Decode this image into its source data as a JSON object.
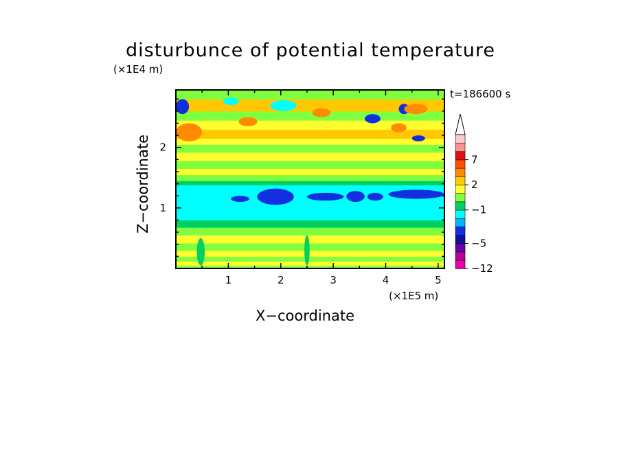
{
  "chart_data": {
    "type": "heatmap",
    "title": "disturbunce of potential temperature",
    "xlabel": "X−coordinate",
    "ylabel": "Z−coordinate",
    "x_unit": "(×1E5 m)",
    "y_unit": "(×1E4 m)",
    "time_label": "t=186600 s",
    "xlim": [
      0,
      5.12
    ],
    "ylim": [
      0,
      2.95
    ],
    "x_ticks": [
      1,
      2,
      3,
      4,
      5
    ],
    "y_ticks": [
      1,
      2
    ],
    "colorbar": {
      "levels": [
        -12,
        -9,
        -7,
        -5,
        -4,
        -3,
        -2,
        -1,
        0,
        1,
        2,
        3,
        5,
        7,
        9,
        12
      ],
      "colors": [
        "#ee00aa",
        "#b4009c",
        "#6a00a8",
        "#1010a0",
        "#1030e0",
        "#00b4ff",
        "#00ffff",
        "#00d060",
        "#80ff40",
        "#ffff30",
        "#ffc800",
        "#ff8c00",
        "#ff5000",
        "#e01010",
        "#ff9090",
        "#ffc8c8"
      ],
      "tick_labels": [
        "-12",
        "-5",
        "-1",
        "2",
        "7"
      ],
      "tick_values": [
        -12,
        -5,
        -1,
        2,
        7
      ],
      "extend": "max"
    },
    "bands": [
      {
        "z": [
          0.0,
          0.05
        ],
        "value": 0.5
      },
      {
        "z": [
          0.05,
          0.12
        ],
        "value": 1.5
      },
      {
        "z": [
          0.12,
          0.2
        ],
        "value": 0.5
      },
      {
        "z": [
          0.2,
          0.3
        ],
        "value": 1.5
      },
      {
        "z": [
          0.3,
          0.42
        ],
        "value": 0.5
      },
      {
        "z": [
          0.42,
          0.55
        ],
        "value": 1.5
      },
      {
        "z": [
          0.55,
          0.68
        ],
        "value": 0.5
      },
      {
        "z": [
          0.68,
          0.8
        ],
        "value": -0.5
      },
      {
        "z": [
          0.8,
          0.88
        ],
        "value": -1.5
      },
      {
        "z": [
          0.88,
          1.1
        ],
        "value": -1.5
      },
      {
        "z": [
          1.1,
          1.38
        ],
        "value": -1.5
      },
      {
        "z": [
          1.38,
          1.45
        ],
        "value": -0.5
      },
      {
        "z": [
          1.45,
          1.55
        ],
        "value": 0.5
      },
      {
        "z": [
          1.55,
          1.65
        ],
        "value": 1.5
      },
      {
        "z": [
          1.65,
          1.78
        ],
        "value": 0.5
      },
      {
        "z": [
          1.78,
          1.92
        ],
        "value": 1.5
      },
      {
        "z": [
          1.92,
          2.05
        ],
        "value": 0.5
      },
      {
        "z": [
          2.05,
          2.15
        ],
        "value": 1.5
      },
      {
        "z": [
          2.15,
          2.3
        ],
        "value": 2.5
      },
      {
        "z": [
          2.3,
          2.45
        ],
        "value": 1.5
      },
      {
        "z": [
          2.45,
          2.6
        ],
        "value": 0.5
      },
      {
        "z": [
          2.6,
          2.8
        ],
        "value": 2.5
      },
      {
        "z": [
          2.8,
          2.95
        ],
        "value": 0.5
      }
    ],
    "cells": [
      {
        "x": [
          1.05,
          1.4
        ],
        "z": [
          1.1,
          1.2
        ],
        "value": -3.5
      },
      {
        "x": [
          1.55,
          2.25
        ],
        "z": [
          1.05,
          1.32
        ],
        "value": -3.5
      },
      {
        "x": [
          2.5,
          3.2
        ],
        "z": [
          1.12,
          1.25
        ],
        "value": -3.5
      },
      {
        "x": [
          3.25,
          3.6
        ],
        "z": [
          1.1,
          1.28
        ],
        "value": -3.5
      },
      {
        "x": [
          3.65,
          3.95
        ],
        "z": [
          1.12,
          1.25
        ],
        "value": -3.5
      },
      {
        "x": [
          4.05,
          5.12
        ],
        "z": [
          1.15,
          1.3
        ],
        "value": -3.5
      },
      {
        "x": [
          0.0,
          0.25
        ],
        "z": [
          2.55,
          2.8
        ],
        "value": -3.5
      },
      {
        "x": [
          3.6,
          3.9
        ],
        "z": [
          2.4,
          2.55
        ],
        "value": -3.5
      },
      {
        "x": [
          4.25,
          4.45
        ],
        "z": [
          2.55,
          2.72
        ],
        "value": -3.5
      },
      {
        "x": [
          4.5,
          4.75
        ],
        "z": [
          2.1,
          2.2
        ],
        "value": -3.5
      },
      {
        "x": [
          0.0,
          0.5
        ],
        "z": [
          2.1,
          2.4
        ],
        "value": 3.5
      },
      {
        "x": [
          1.2,
          1.55
        ],
        "z": [
          2.35,
          2.5
        ],
        "value": 3.5
      },
      {
        "x": [
          2.6,
          2.95
        ],
        "z": [
          2.5,
          2.65
        ],
        "value": 3.5
      },
      {
        "x": [
          4.1,
          4.4
        ],
        "z": [
          2.25,
          2.4
        ],
        "value": 3.5
      },
      {
        "x": [
          4.35,
          4.8
        ],
        "z": [
          2.55,
          2.72
        ],
        "value": 3.5
      },
      {
        "x": [
          0.9,
          1.2
        ],
        "z": [
          2.7,
          2.82
        ],
        "value": -1.5
      },
      {
        "x": [
          1.8,
          2.3
        ],
        "z": [
          2.6,
          2.78
        ],
        "value": -1.5
      },
      {
        "x": [
          0.4,
          0.55
        ],
        "z": [
          0.05,
          0.5
        ],
        "value": -0.5
      },
      {
        "x": [
          2.45,
          2.55
        ],
        "z": [
          0.05,
          0.55
        ],
        "value": -0.5
      }
    ]
  }
}
